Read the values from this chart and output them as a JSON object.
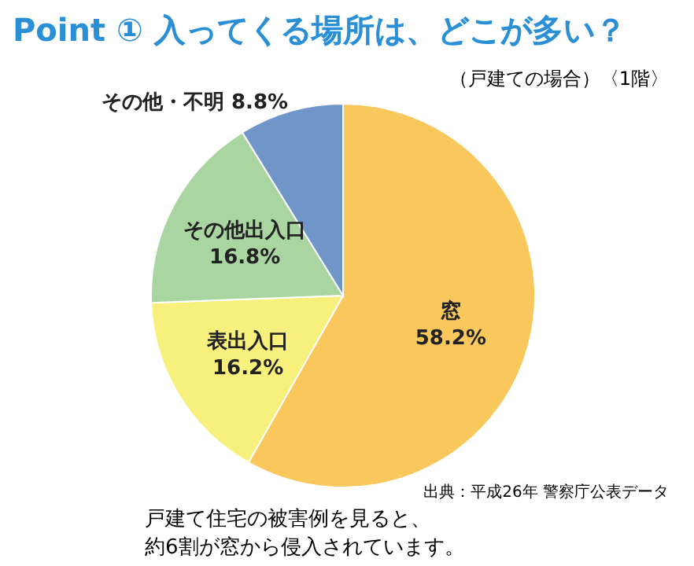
{
  "chart_data": {
    "type": "pie",
    "title": "Point ① 入ってくる場所は、どこが多い？",
    "subtitle": "（戸建ての場合）〈1階〉",
    "categories": [
      "窓",
      "表出入口",
      "その他出入口",
      "その他・不明"
    ],
    "values": [
      58.2,
      16.2,
      16.8,
      8.8
    ],
    "value_labels": [
      "58.2%",
      "16.2%",
      "16.8%",
      "8.8%"
    ],
    "colors": [
      "#f9c75c",
      "#f8f07c",
      "#a9d5a1",
      "#6f95c9"
    ],
    "annotations": [
      "出典：平成26年 警察庁公表データ",
      "戸建て住宅の被害例を見ると、",
      "約6割が窓から侵入されています。"
    ]
  }
}
